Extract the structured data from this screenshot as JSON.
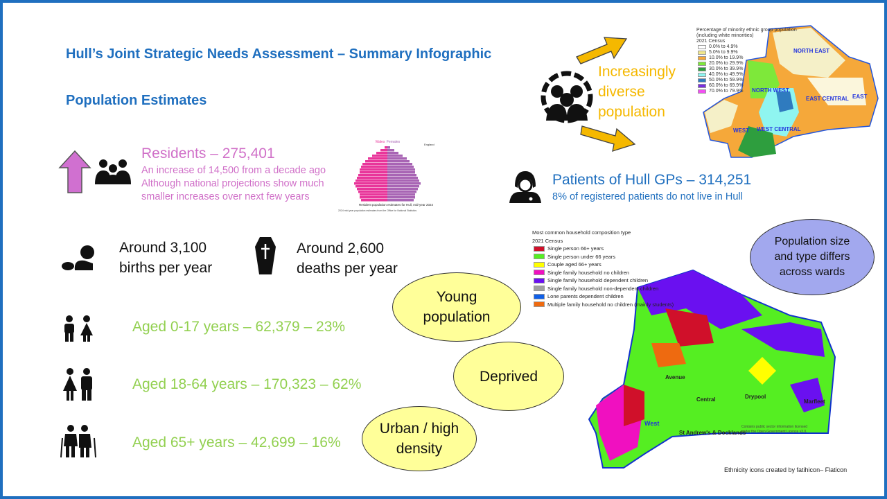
{
  "title": "Hull’s Joint Strategic Needs Assessment – Summary Infographic",
  "subtitle": "Population Estimates",
  "residents": {
    "heading": "Residents – 275,401",
    "line1": "An increase of 14,500 from a decade ago",
    "line2": "Although national projections show much",
    "line3": "smaller increases over next few years",
    "icon": "people-icon",
    "arrow": "up-arrow-icon"
  },
  "pyramid": {
    "males": "Males",
    "females": "Females",
    "legend": "England",
    "caption": "Resident population estimates for Hull, mid-year 2024",
    "source": "2024 mid-year population estimates from the Office for National Statistics",
    "male_color": "#e8359a",
    "female_color": "#a864b4"
  },
  "births": {
    "line1": "Around 3,100",
    "line2": "births per year",
    "icon": "baby-icon"
  },
  "deaths": {
    "line1": "Around 2,600",
    "line2": "deaths per year",
    "icon": "coffin-icon"
  },
  "ages": [
    {
      "label": "Aged 0-17 years – 62,379 – 23%",
      "icon": "children-icon"
    },
    {
      "label": "Aged 18-64 years – 170,323 – 62%",
      "icon": "adults-icon"
    },
    {
      "label": "Aged 65+ years – 42,699 – 16%",
      "icon": "elderly-icon"
    }
  ],
  "diversity": {
    "line1": "Increasingly",
    "line2": "diverse",
    "line3": "population",
    "icon": "diverse-people-icon"
  },
  "ethnic_map": {
    "title1": "Percentage of minority ethnic group population",
    "title2": "(including white minorities)",
    "title3": "2021 Census",
    "legend": [
      {
        "label": "0.0% to 4.9%",
        "color": "#ffffff"
      },
      {
        "label": "5.0% to 9.9%",
        "color": "#f0e68c"
      },
      {
        "label": "10.0% to 19.9%",
        "color": "#f5a83a"
      },
      {
        "label": "20.0% to 29.9%",
        "color": "#7ee83a"
      },
      {
        "label": "30.0% to 39.9%",
        "color": "#2e9e3e"
      },
      {
        "label": "40.0% to 49.9%",
        "color": "#8ff5f0"
      },
      {
        "label": "50.0% to 59.9%",
        "color": "#2f7bbf"
      },
      {
        "label": "60.0% to 69.9%",
        "color": "#7a2ee0"
      },
      {
        "label": "70.0% to 79.9%",
        "color": "#f050f0"
      }
    ],
    "regions": [
      "NORTH EAST",
      "NORTH WEST",
      "EAST CENTRAL",
      "EAST",
      "WEST",
      "WEST CENTRAL"
    ]
  },
  "patients": {
    "heading": "Patients of Hull GPs – 314,251",
    "line": "8% of registered patients do not live in Hull",
    "icon": "doctor-icon"
  },
  "household_map": {
    "title1": "Most common household composition type",
    "title2": "2021 Census",
    "legend": [
      {
        "label": "Single person 66+ years",
        "color": "#d0102a"
      },
      {
        "label": "Single person under 66 years",
        "color": "#55ee22"
      },
      {
        "label": "Couple aged 66+ years",
        "color": "#ffff00"
      },
      {
        "label": "Single family household no children",
        "color": "#f010c0"
      },
      {
        "label": "Single family household dependent children",
        "color": "#6a10f0"
      },
      {
        "label": "Single family household non-dependent children",
        "color": "#a0a0a0"
      },
      {
        "label": "Lone parents dependent children",
        "color": "#1060e8"
      },
      {
        "label": "Multiple family household no children (mainly students)",
        "color": "#ee6a10"
      }
    ],
    "wards": [
      "Central",
      "Drypool",
      "Marfleet",
      "Avenue",
      "St Andrew's & Docklands",
      "West"
    ],
    "licence1": "Contains public sector information licensed",
    "licence2": "under the Open Government Licence v3.0."
  },
  "callouts": {
    "young": "Young population",
    "deprived": "Deprived",
    "urban": "Urban / high density",
    "wards": "Population size and type differs across wards"
  },
  "credit": "Ethnicity icons created by fatihicon– Flaticon"
}
